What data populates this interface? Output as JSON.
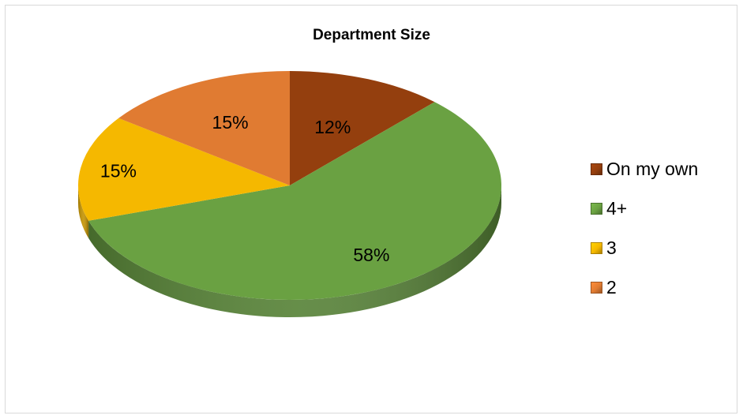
{
  "chart_data": {
    "type": "pie",
    "title": "Department Size",
    "categories": [
      "On my own",
      "4+",
      "3",
      "2"
    ],
    "values": [
      12,
      58,
      15,
      15
    ],
    "labels": [
      "12%",
      "58%",
      "15%",
      "15%"
    ],
    "colors": [
      "#943f0e",
      "#6aa142",
      "#f5b800",
      "#e07b32"
    ],
    "legend_position": "right"
  }
}
